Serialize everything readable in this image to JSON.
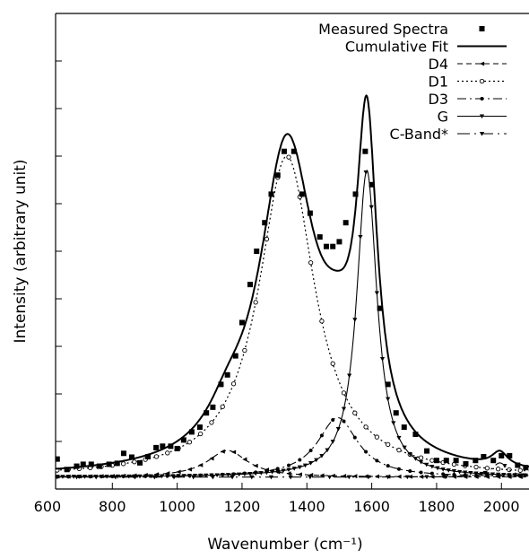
{
  "chart_data": {
    "type": "line",
    "title": "",
    "xlabel": "Wavenumber (cm⁻¹)",
    "ylabel": "Intensity (arbitrary unit)",
    "xlim": [
      625,
      2085
    ],
    "ylim": [
      0,
      1.0
    ],
    "xticks": [
      "600",
      "800",
      "1000",
      "1200",
      "1400",
      "1600",
      "1800",
      "2000"
    ],
    "xtick_values": [
      600,
      800,
      1000,
      1200,
      1400,
      1600,
      1800,
      2000
    ],
    "ytick_values": [
      0.1,
      0.2,
      0.3,
      0.4,
      0.5,
      0.6,
      0.7,
      0.8,
      0.9,
      1.0
    ],
    "ytick_labels_shown": false,
    "grid": false,
    "legend_position": "top-right",
    "legend": [
      {
        "name": "Measured Spectra",
        "style": "markers-square"
      },
      {
        "name": "Cumulative Fit",
        "style": "solid-thick"
      },
      {
        "name": "D4",
        "style": "dashed-marker"
      },
      {
        "name": "D1",
        "style": "dotted-marker"
      },
      {
        "name": "D3",
        "style": "dashdot-marker"
      },
      {
        "name": "G",
        "style": "solid-triangle"
      },
      {
        "name": "C-Band*",
        "style": "longdash-dot"
      }
    ],
    "baseline": 0.025,
    "components": [
      {
        "name": "D4",
        "center": 1155,
        "width": 75,
        "height": 0.056
      },
      {
        "name": "D1",
        "center": 1338,
        "width": 105,
        "height": 0.675
      },
      {
        "name": "D3",
        "center": 1495,
        "width": 75,
        "height": 0.125
      },
      {
        "name": "G",
        "center": 1585,
        "width": 38,
        "height": 0.645
      },
      {
        "name": "C-Band*",
        "center": 1995,
        "width": 30,
        "height": 0.03
      }
    ],
    "measured": {
      "name": "Measured Spectra",
      "x": [
        630,
        660,
        690,
        710,
        735,
        760,
        790,
        815,
        835,
        860,
        885,
        910,
        935,
        955,
        980,
        1000,
        1020,
        1045,
        1070,
        1090,
        1110,
        1135,
        1155,
        1180,
        1200,
        1225,
        1245,
        1270,
        1290,
        1310,
        1330,
        1360,
        1385,
        1410,
        1440,
        1460,
        1480,
        1500,
        1520,
        1550,
        1580,
        1600,
        1625,
        1650,
        1675,
        1700,
        1735,
        1770,
        1800,
        1830,
        1860,
        1890,
        1920,
        1945,
        1975,
        2000,
        2025,
        2050,
        2075
      ],
      "y": [
        0.063,
        0.041,
        0.048,
        0.052,
        0.052,
        0.048,
        0.052,
        0.054,
        0.075,
        0.067,
        0.055,
        0.068,
        0.087,
        0.09,
        0.09,
        0.085,
        0.103,
        0.12,
        0.13,
        0.16,
        0.172,
        0.22,
        0.24,
        0.28,
        0.35,
        0.43,
        0.5,
        0.56,
        0.62,
        0.66,
        0.71,
        0.71,
        0.62,
        0.58,
        0.53,
        0.51,
        0.51,
        0.52,
        0.56,
        0.62,
        0.71,
        0.64,
        0.38,
        0.22,
        0.16,
        0.13,
        0.115,
        0.08,
        0.06,
        0.06,
        0.06,
        0.053,
        0.06,
        0.068,
        0.06,
        0.07,
        0.07,
        0.05,
        0.045
      ]
    }
  }
}
